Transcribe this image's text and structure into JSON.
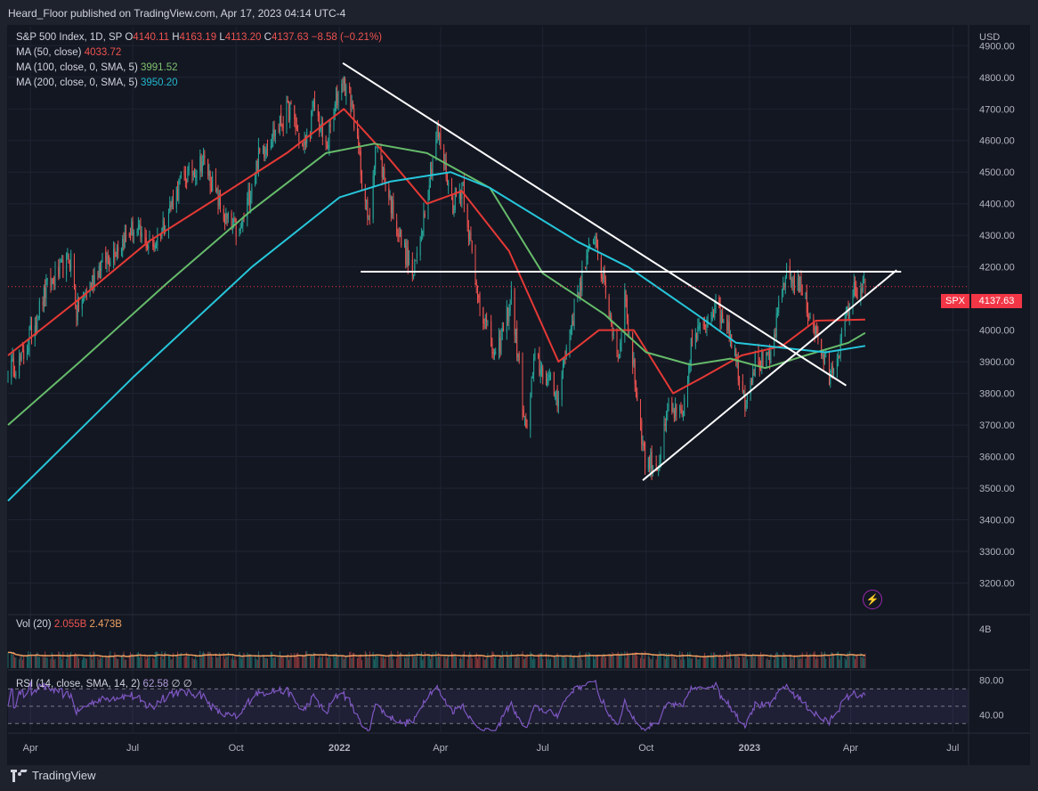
{
  "header": {
    "publish_text": "Heard_Floor published on TradingView.com, Apr 17, 2023 04:14 UTC-4"
  },
  "footer": {
    "brand": "TradingView"
  },
  "legend": {
    "symbol": "S&P 500 Index, 1D, SP",
    "open_label": "O",
    "open": "4140.11",
    "high_label": "H",
    "high": "4163.19",
    "low_label": "L",
    "low": "4113.20",
    "close_label": "C",
    "close": "4137.63",
    "change": "−8.58 (−0.21%)",
    "ma50_label": "MA (50, close)",
    "ma50_value": "4033.72",
    "ma100_label": "MA (100, close, 0, SMA, 5)",
    "ma100_value": "3991.52",
    "ma200_label": "MA (200, close, 0, SMA, 5)",
    "ma200_value": "3950.20",
    "vol_label": "Vol (20)",
    "vol_value": "2.055B",
    "vol_ma": "2.473B",
    "rsi_label": "RSI (14, close, SMA, 14, 2)",
    "rsi_value": "62.58",
    "rsi_extra": "∅ ∅"
  },
  "axis": {
    "currency": "USD",
    "vol_tick": "4B",
    "last_price_tag": "SPX",
    "last_price": "4137.63"
  },
  "colors": {
    "background": "#131722",
    "up": "#26a69a",
    "down": "#ef5350",
    "ma50": "#e53935",
    "ma100": "#66bb6a",
    "ma200": "#26c6da",
    "trendline": "#ffffff",
    "rsi": "#7e57c2"
  },
  "icons": {
    "alert": "lightning-bolt-icon",
    "brand": "tradingview-logo-icon"
  },
  "chart_data": [
    {
      "type": "candlestick",
      "title": "S&P 500 Index, 1D, SP",
      "y_label": "USD",
      "y_ticks": [
        3200,
        3300,
        3400,
        3500,
        3600,
        3700,
        3800,
        3900,
        4000,
        4100,
        4200,
        4300,
        4400,
        4500,
        4600,
        4700,
        4800,
        4900
      ],
      "y_tick_labels": [
        "3200.00",
        "3300.00",
        "3400.00",
        "3500.00",
        "3600.00",
        "3700.00",
        "3800.00",
        "3900.00",
        "4000.00",
        "4100.00",
        "4200.00",
        "4300.00",
        "4400.00",
        "4500.00",
        "4600.00",
        "4700.00",
        "4800.00",
        "4900.00"
      ],
      "ylim": [
        3100,
        4960
      ],
      "x_range": [
        "2021-03-12",
        "2023-07-15"
      ],
      "x_ticks": [
        "2021-04-01",
        "2021-07-01",
        "2021-10-01",
        "2022-01-01",
        "2022-04-01",
        "2022-07-01",
        "2022-10-01",
        "2023-01-01",
        "2023-04-01",
        "2023-07-01"
      ],
      "x_tick_labels": [
        "Apr",
        "Jul",
        "Oct",
        "2022",
        "Apr",
        "Jul",
        "Oct",
        "2023",
        "Apr",
        "Jul"
      ],
      "close_anchors": [
        [
          "2021-03-12",
          3880
        ],
        [
          "2021-03-24",
          3900
        ],
        [
          "2021-04-15",
          4130
        ],
        [
          "2021-05-07",
          4230
        ],
        [
          "2021-05-12",
          4060
        ],
        [
          "2021-06-01",
          4200
        ],
        [
          "2021-07-01",
          4320
        ],
        [
          "2021-07-19",
          4260
        ],
        [
          "2021-08-13",
          4470
        ],
        [
          "2021-09-02",
          4540
        ],
        [
          "2021-09-20",
          4360
        ],
        [
          "2021-10-04",
          4300
        ],
        [
          "2021-10-21",
          4550
        ],
        [
          "2021-11-18",
          4700
        ],
        [
          "2021-11-30",
          4570
        ],
        [
          "2021-12-10",
          4710
        ],
        [
          "2021-12-20",
          4570
        ],
        [
          "2022-01-03",
          4800
        ],
        [
          "2022-01-12",
          4720
        ],
        [
          "2022-01-27",
          4330
        ],
        [
          "2022-02-02",
          4590
        ],
        [
          "2022-02-24",
          4290
        ],
        [
          "2022-03-08",
          4170
        ],
        [
          "2022-03-29",
          4630
        ],
        [
          "2022-04-12",
          4400
        ],
        [
          "2022-04-21",
          4460
        ],
        [
          "2022-05-02",
          4150
        ],
        [
          "2022-05-20",
          3900
        ],
        [
          "2022-06-03",
          4110
        ],
        [
          "2022-06-16",
          3670
        ],
        [
          "2022-06-24",
          3910
        ],
        [
          "2022-07-14",
          3790
        ],
        [
          "2022-08-01",
          4120
        ],
        [
          "2022-08-16",
          4305
        ],
        [
          "2022-09-06",
          3910
        ],
        [
          "2022-09-12",
          4110
        ],
        [
          "2022-09-30",
          3585
        ],
        [
          "2022-10-12",
          3577
        ],
        [
          "2022-10-21",
          3750
        ],
        [
          "2022-11-03",
          3720
        ],
        [
          "2022-11-10",
          3950
        ],
        [
          "2022-12-01",
          4080
        ],
        [
          "2022-12-13",
          4020
        ],
        [
          "2022-12-28",
          3780
        ],
        [
          "2023-01-06",
          3900
        ],
        [
          "2023-01-19",
          3900
        ],
        [
          "2023-02-02",
          4180
        ],
        [
          "2023-02-15",
          4140
        ],
        [
          "2023-03-02",
          3980
        ],
        [
          "2023-03-13",
          3850
        ],
        [
          "2023-03-24",
          3970
        ],
        [
          "2023-04-03",
          4120
        ],
        [
          "2023-04-14",
          4137.63
        ]
      ],
      "ma_series": [
        {
          "name": "MA (50, close)",
          "color": "#e53935",
          "points": [
            [
              "2021-03-12",
              3920
            ],
            [
              "2021-05-15",
              4100
            ],
            [
              "2021-07-15",
              4280
            ],
            [
              "2021-09-15",
              4420
            ],
            [
              "2021-11-15",
              4560
            ],
            [
              "2022-01-05",
              4700
            ],
            [
              "2022-02-10",
              4560
            ],
            [
              "2022-03-20",
              4400
            ],
            [
              "2022-04-20",
              4440
            ],
            [
              "2022-06-01",
              4250
            ],
            [
              "2022-07-15",
              3900
            ],
            [
              "2022-08-20",
              4000
            ],
            [
              "2022-09-20",
              4000
            ],
            [
              "2022-10-25",
              3800
            ],
            [
              "2022-11-20",
              3850
            ],
            [
              "2022-12-25",
              3920
            ],
            [
              "2023-01-30",
              3950
            ],
            [
              "2023-03-01",
              4030
            ],
            [
              "2023-04-14",
              4033.72
            ]
          ]
        },
        {
          "name": "MA (100, close, 0, SMA, 5)",
          "color": "#66bb6a",
          "points": [
            [
              "2021-03-12",
              3700
            ],
            [
              "2021-05-15",
              3900
            ],
            [
              "2021-08-01",
              4150
            ],
            [
              "2021-10-15",
              4380
            ],
            [
              "2021-12-20",
              4560
            ],
            [
              "2022-02-01",
              4590
            ],
            [
              "2022-03-20",
              4560
            ],
            [
              "2022-05-15",
              4450
            ],
            [
              "2022-07-01",
              4180
            ],
            [
              "2022-08-25",
              4050
            ],
            [
              "2022-10-01",
              3930
            ],
            [
              "2022-11-10",
              3890
            ],
            [
              "2022-12-15",
              3910
            ],
            [
              "2023-01-15",
              3880
            ],
            [
              "2023-02-20",
              3920
            ],
            [
              "2023-03-30",
              3960
            ],
            [
              "2023-04-14",
              3991.52
            ]
          ]
        },
        {
          "name": "MA (200, close, 0, SMA, 5)",
          "color": "#26c6da",
          "points": [
            [
              "2021-03-12",
              3460
            ],
            [
              "2021-07-01",
              3850
            ],
            [
              "2021-10-15",
              4200
            ],
            [
              "2022-01-01",
              4420
            ],
            [
              "2022-02-15",
              4470
            ],
            [
              "2022-04-10",
              4500
            ],
            [
              "2022-05-15",
              4450
            ],
            [
              "2022-08-01",
              4280
            ],
            [
              "2022-09-15",
              4200
            ],
            [
              "2022-11-15",
              4050
            ],
            [
              "2022-12-20",
              3960
            ],
            [
              "2023-02-10",
              3940
            ],
            [
              "2023-03-10",
              3930
            ],
            [
              "2023-04-14",
              3950.2
            ]
          ]
        }
      ],
      "trendlines": [
        {
          "name": "descending-resistance",
          "from": [
            "2022-01-04",
            4845
          ],
          "to": [
            "2023-03-28",
            3825
          ]
        },
        {
          "name": "rising-support",
          "from": [
            "2022-09-28",
            3525
          ],
          "to": [
            "2023-05-12",
            4190
          ]
        },
        {
          "name": "horizontal-resistance",
          "from": [
            "2022-01-20",
            4185
          ],
          "to": [
            "2023-05-16",
            4185
          ]
        }
      ]
    },
    {
      "type": "bar",
      "title": "Vol (20)",
      "series": [
        {
          "name": "2.055B",
          "values": "daily"
        },
        {
          "name": "2.473B"
        }
      ],
      "y_tick_labels": [
        "4B"
      ]
    },
    {
      "type": "line",
      "title": "RSI (14, close, SMA, 14, 2)",
      "last_value": 62.58,
      "y_tick_labels": [
        "80.00",
        "40.00"
      ],
      "ylim": [
        20,
        90
      ],
      "bands": [
        70,
        50,
        30
      ]
    }
  ]
}
